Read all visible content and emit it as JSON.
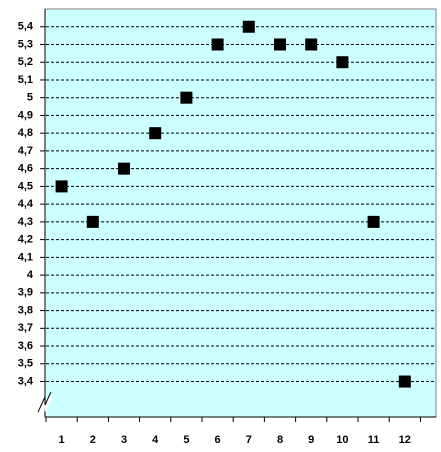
{
  "chart_data": {
    "type": "scatter",
    "categories": [
      "1",
      "2",
      "3",
      "4",
      "5",
      "6",
      "7",
      "8",
      "9",
      "10",
      "11",
      "12"
    ],
    "values": [
      4.5,
      4.3,
      4.6,
      4.8,
      5,
      5.3,
      5.4,
      5.3,
      5.3,
      5.2,
      4.3,
      3.4
    ],
    "color": "#000000",
    "ylim": [
      3.2,
      5.5
    ],
    "yticks": [
      {
        "value": 3.4,
        "label": "3,4"
      },
      {
        "value": 3.5,
        "label": "3,5"
      },
      {
        "value": 3.6,
        "label": "3,6"
      },
      {
        "value": 3.7,
        "label": "3,7"
      },
      {
        "value": 3.8,
        "label": "3,8"
      },
      {
        "value": 3.9,
        "label": "3,9"
      },
      4,
      {
        "value": 4.1,
        "label": "4,1"
      },
      {
        "value": 4.2,
        "label": "4,2"
      },
      {
        "value": 4.3,
        "label": "4,3"
      },
      {
        "value": 4.4,
        "label": "4,4"
      },
      {
        "value": 4.5,
        "label": "4,5"
      },
      {
        "value": 4.6,
        "label": "4,6"
      },
      {
        "value": 4.7,
        "label": "4,7"
      },
      {
        "value": 4.8,
        "label": "4,8"
      },
      {
        "value": 4.9,
        "label": "4,9"
      },
      5,
      {
        "value": 5.1,
        "label": "5,1"
      },
      {
        "value": 5.2,
        "label": "5,2"
      },
      {
        "value": 5.3,
        "label": "5,3"
      },
      {
        "value": 5.4,
        "label": "5,4"
      }
    ],
    "grid": true
  }
}
